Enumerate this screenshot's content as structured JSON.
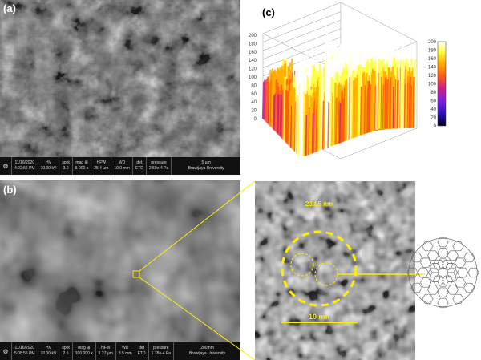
{
  "panels": {
    "a": {
      "label": "(a)",
      "info": {
        "date": "11/16/2020",
        "time": "4:22:56 PM",
        "hv_label": "HV",
        "hv": "10.00 kV",
        "spot_label": "spot",
        "spot": "3.0",
        "mag_label": "mag ⊞",
        "mag": "5 000 x",
        "hfw_label": "HFW",
        "hfw": "25.4 µm",
        "wd_label": "WD",
        "wd": "10.0 mm",
        "det_label": "det",
        "det": "ETD",
        "pressure_label": "pressure",
        "pressure": "2.50e-4 Pa",
        "scale": "5 µm",
        "institution": "Brawijaya University"
      }
    },
    "b": {
      "label": "(b)",
      "info": {
        "date": "11/16/2020",
        "time": "5:08:55 PM",
        "hv_label": "HV",
        "hv": "10.00 kV",
        "spot_label": "spot",
        "spot": "2.5",
        "mag_label": "mag ⊞",
        "mag": "100 000 x",
        "hfw_label": "HFW",
        "hfw": "1.27 µm",
        "wd_label": "WD",
        "wd": "8.5 mm",
        "det_label": "det",
        "det": "ETD",
        "pressure_label": "pressure",
        "pressure": "1.78e-4 Pa",
        "scale": "200 nm",
        "institution": "Brawijaya University"
      },
      "zoom": {
        "diameter_label": "23.85 nm",
        "scale_label": "10 nm",
        "accent": "#ffee00"
      }
    },
    "c": {
      "label": "(c)"
    }
  },
  "chart_data": {
    "type": "surface",
    "z_ticks": [
      "0",
      "20",
      "40",
      "60",
      "80",
      "100",
      "120",
      "140",
      "160",
      "180",
      "200"
    ],
    "colorbar_ticks": [
      "0",
      "20",
      "40",
      "60",
      "80",
      "100",
      "120",
      "140",
      "160",
      "180",
      "200"
    ],
    "zlim": [
      0,
      200
    ],
    "colormap": [
      "#000020",
      "#3010c0",
      "#8020e0",
      "#d02080",
      "#ff6010",
      "#ffb000",
      "#ffff40",
      "#ffffff"
    ]
  }
}
